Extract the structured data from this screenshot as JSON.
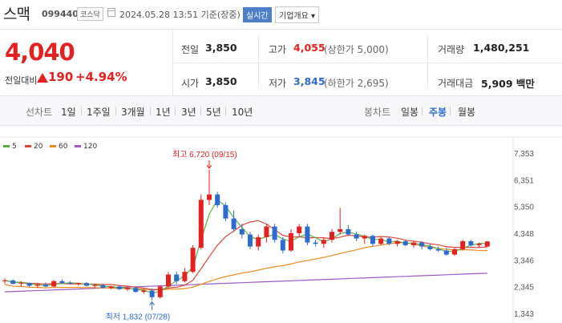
{
  "header": {
    "name": "스맥",
    "code": "099440",
    "market": "코스닥",
    "date": "2024.05.28 13:51  기준(장중)",
    "realtime": "실시간",
    "overview": "기업개요 ▾"
  },
  "price": {
    "current": "4,040",
    "change_label": "전일대비",
    "change": "190",
    "change_pct": "+4.94%"
  },
  "stats": {
    "prev_close_label": "전일",
    "prev_close": "3,850",
    "high_label": "고가",
    "high": "4,055",
    "upper_limit": "(상한가 5,000)",
    "volume_label": "거래량",
    "volume": "1,480,251",
    "open_label": "시가",
    "open": "3,850",
    "low_label": "저가",
    "low": "3,845",
    "lower_limit": "(하한가 2,695)",
    "amount_label": "거래대금",
    "amount": "5,909 백만"
  },
  "tabs": {
    "line_title": "선차트",
    "line_items": [
      "1일",
      "1주일",
      "3개월",
      "1년",
      "3년",
      "5년",
      "10년"
    ],
    "candle_title": "봉차트",
    "candle_items": [
      "일봉",
      "주봉",
      "월봉"
    ],
    "active_candle": "주봉"
  },
  "colors": {
    "up": "#e5211f",
    "down": "#2d6bd0",
    "ma5": "#59b248",
    "ma20": "#e0453b",
    "ma60": "#f08a1d",
    "ma120": "#9b59c6"
  },
  "chart_data": {
    "type": "candlestick",
    "legend": [
      "5",
      "20",
      "60",
      "120"
    ],
    "y_ticks": [
      "7,353",
      "6,351",
      "5,350",
      "4,348",
      "3,346",
      "2,345",
      "1,343"
    ],
    "ylim": [
      1343,
      7353
    ],
    "annotation_high": "최고 6,720 (09/15)",
    "annotation_low": "최저 1,832 (07/28)",
    "candles": [
      [
        2550,
        2650,
        2450,
        2580
      ],
      [
        2580,
        2620,
        2420,
        2450
      ],
      [
        2450,
        2550,
        2350,
        2480
      ],
      [
        2480,
        2500,
        2330,
        2380
      ],
      [
        2380,
        2450,
        2300,
        2420
      ],
      [
        2420,
        2500,
        2330,
        2350
      ],
      [
        2350,
        2600,
        2330,
        2550
      ],
      [
        2550,
        2620,
        2450,
        2480
      ],
      [
        2480,
        2560,
        2420,
        2450
      ],
      [
        2450,
        2500,
        2380,
        2480
      ],
      [
        2480,
        2520,
        2350,
        2380
      ],
      [
        2380,
        2450,
        2300,
        2400
      ],
      [
        2400,
        2450,
        2270,
        2300
      ],
      [
        2300,
        2380,
        2250,
        2350
      ],
      [
        2350,
        2400,
        2220,
        2250
      ],
      [
        2250,
        2330,
        2180,
        2300
      ],
      [
        2300,
        2350,
        2120,
        2150
      ],
      [
        2150,
        2250,
        2080,
        2200
      ],
      [
        2200,
        2280,
        1832,
        1950
      ],
      [
        1950,
        2400,
        1900,
        2350
      ],
      [
        2350,
        2900,
        2300,
        2800
      ],
      [
        2800,
        2900,
        2450,
        2550
      ],
      [
        2550,
        3050,
        2500,
        2900
      ],
      [
        2900,
        3900,
        2850,
        3800
      ],
      [
        3800,
        5800,
        3750,
        5600
      ],
      [
        5600,
        6720,
        5400,
        5800
      ],
      [
        5800,
        5900,
        5300,
        5400
      ],
      [
        5400,
        5500,
        4800,
        4900
      ],
      [
        4900,
        5200,
        4400,
        4500
      ],
      [
        4500,
        4700,
        4150,
        4300
      ],
      [
        4300,
        4400,
        3750,
        3850
      ],
      [
        3850,
        4300,
        3700,
        4200
      ],
      [
        4200,
        4700,
        4000,
        4600
      ],
      [
        4600,
        4700,
        4000,
        4100
      ],
      [
        4100,
        4200,
        3600,
        3700
      ],
      [
        3700,
        4500,
        3650,
        4350
      ],
      [
        4350,
        4700,
        4200,
        4600
      ],
      [
        4600,
        4700,
        3900,
        4000
      ],
      [
        4000,
        4100,
        3850,
        3950
      ],
      [
        3950,
        4200,
        3800,
        4100
      ],
      [
        4100,
        4500,
        4000,
        4400
      ],
      [
        4400,
        5300,
        4300,
        4500
      ],
      [
        4500,
        4650,
        4250,
        4300
      ],
      [
        4300,
        4400,
        4050,
        4150
      ],
      [
        4150,
        4300,
        3950,
        4250
      ],
      [
        4250,
        4300,
        3850,
        3950
      ],
      [
        3950,
        4200,
        3900,
        4150
      ],
      [
        4150,
        4200,
        3900,
        3950
      ],
      [
        3950,
        4100,
        3850,
        4050
      ],
      [
        4050,
        4100,
        3850,
        3900
      ],
      [
        3900,
        4050,
        3800,
        4000
      ],
      [
        4000,
        4050,
        3750,
        3850
      ],
      [
        3850,
        3950,
        3700,
        3750
      ],
      [
        3750,
        3850,
        3650,
        3700
      ],
      [
        3700,
        3800,
        3500,
        3550
      ],
      [
        3550,
        3800,
        3500,
        3750
      ],
      [
        3750,
        4100,
        3700,
        4050
      ],
      [
        4050,
        4100,
        3850,
        3900
      ],
      [
        3900,
        4000,
        3800,
        3950
      ],
      [
        3850,
        4055,
        3845,
        4040
      ]
    ]
  }
}
